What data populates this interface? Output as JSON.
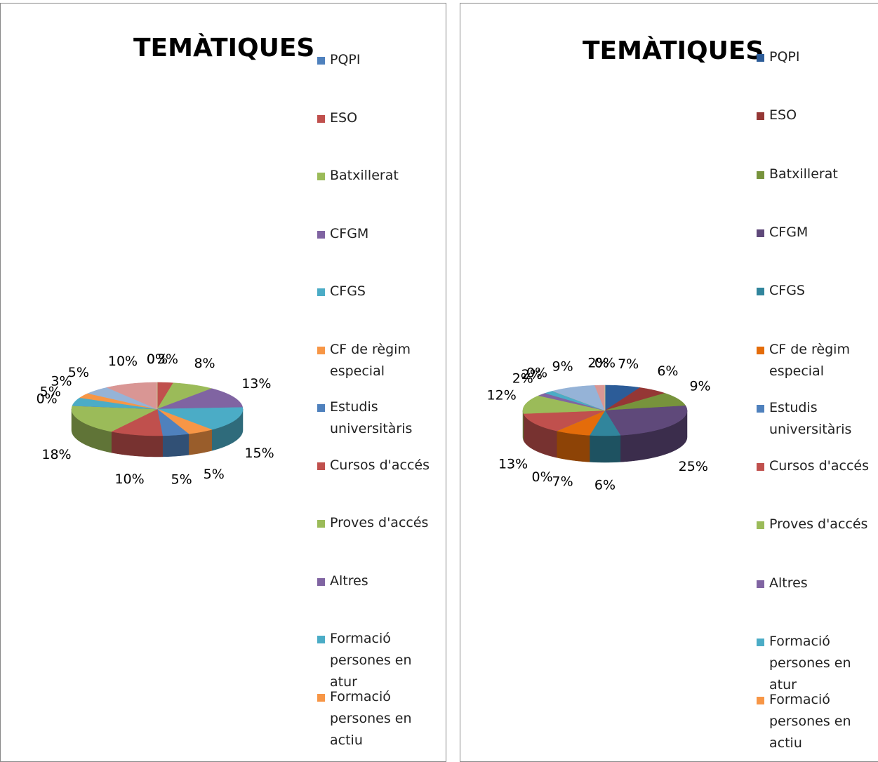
{
  "chart_data": [
    {
      "type": "pie",
      "title": "TEMÀTIQUES",
      "categories": [
        "PQPI",
        "ESO",
        "Batxillerat",
        "CFGM",
        "CFGS",
        "CF de règim especial",
        "Estudis universitàris",
        "Cursos d'accés",
        "Proves d'accés",
        "Altres",
        "Formació persones en atur",
        "Formació persones en actiu",
        null,
        null,
        null
      ],
      "values": [
        0,
        3,
        8,
        13,
        15,
        5,
        5,
        10,
        18,
        0,
        5,
        3,
        5,
        10,
        0
      ],
      "value_labels": [
        "0%",
        "3%",
        "8%",
        "13%",
        "15%",
        "5%",
        "5%",
        "10%",
        "18%",
        "0%",
        "5%",
        "3%",
        "5%",
        "10%",
        "0%"
      ],
      "colors": [
        "#4F81BD",
        "#C0504D",
        "#9BBB59",
        "#8064A2",
        "#4BACC6",
        "#F79646",
        "#4F81BD",
        "#C0504D",
        "#9BBB59",
        "#8064A2",
        "#4BACC6",
        "#F79646",
        "#95B3D7",
        "#D99694",
        "#C3D69B"
      ]
    },
    {
      "type": "pie",
      "title": "TEMÀTIQUES",
      "categories": [
        "PQPI",
        "ESO",
        "Batxillerat",
        "CFGM",
        "CFGS",
        "CF de règim especial",
        "Estudis universitàris",
        "Cursos d'accés",
        "Proves d'accés",
        "Altres",
        "Formació persones en atur",
        "Formació persones en actiu",
        null,
        null,
        null
      ],
      "values": [
        7,
        6,
        9,
        25,
        6,
        7,
        0,
        13,
        12,
        2,
        2,
        0,
        9,
        2,
        0
      ],
      "value_labels": [
        "7%",
        "6%",
        "9%",
        "25%",
        "6%",
        "7%",
        "0%",
        "13%",
        "12%",
        "2%",
        "2%",
        "0%",
        "9%",
        "2%",
        "0%"
      ],
      "colors": [
        "#2C5C98",
        "#953735",
        "#77933C",
        "#5F497A",
        "#31859C",
        "#E46C0A",
        "#4F81BD",
        "#C0504D",
        "#9BBB59",
        "#8064A2",
        "#4BACC6",
        "#F79646",
        "#95B3D7",
        "#D99694",
        "#C3D69B"
      ]
    }
  ]
}
